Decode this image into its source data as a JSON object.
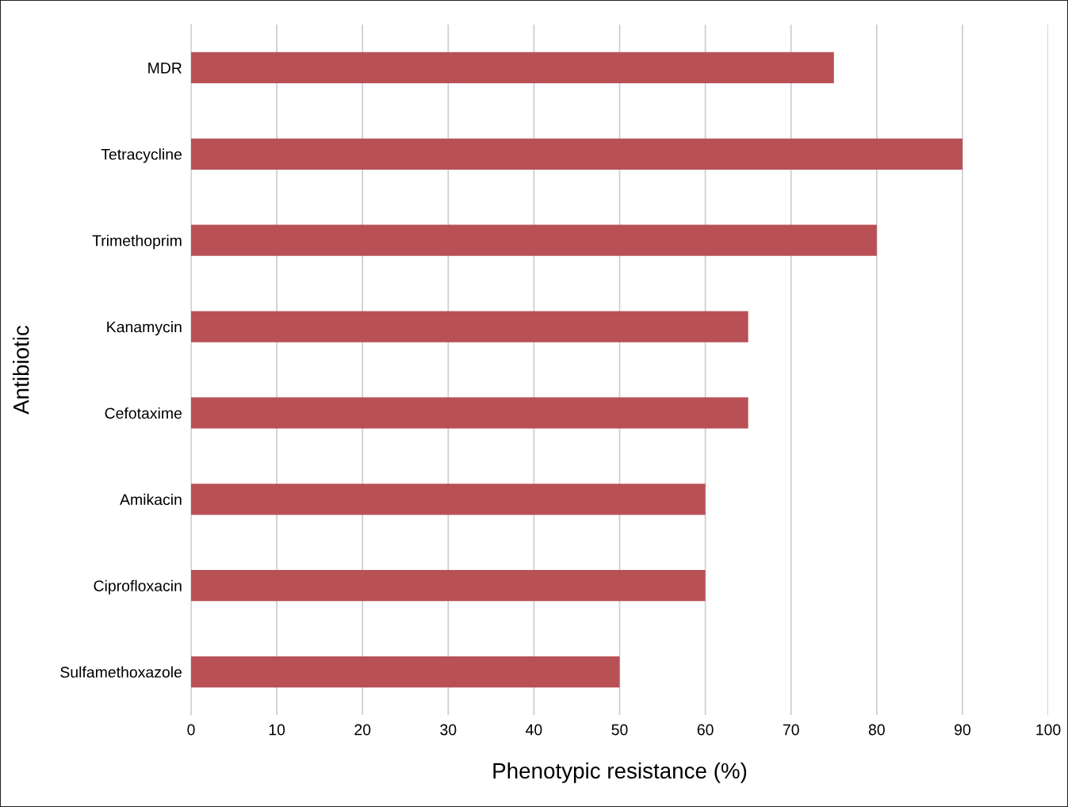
{
  "chart_data": {
    "type": "bar",
    "orientation": "horizontal",
    "categories": [
      "MDR",
      "Tetracycline",
      "Trimethoprim",
      "Kanamycin",
      "Cefotaxime",
      "Amikacin",
      "Ciprofloxacin",
      "Sulfamethoxazole"
    ],
    "values": [
      75,
      90,
      80,
      65,
      65,
      60,
      60,
      50
    ],
    "color": "#b85055",
    "xlabel": "Phenotypic resistance (%)",
    "ylabel": "Antibiotic",
    "xlim": [
      0,
      100
    ],
    "xticks": [
      0,
      10,
      20,
      30,
      40,
      50,
      60,
      70,
      80,
      90,
      100
    ],
    "grid": "x",
    "legend": false
  }
}
